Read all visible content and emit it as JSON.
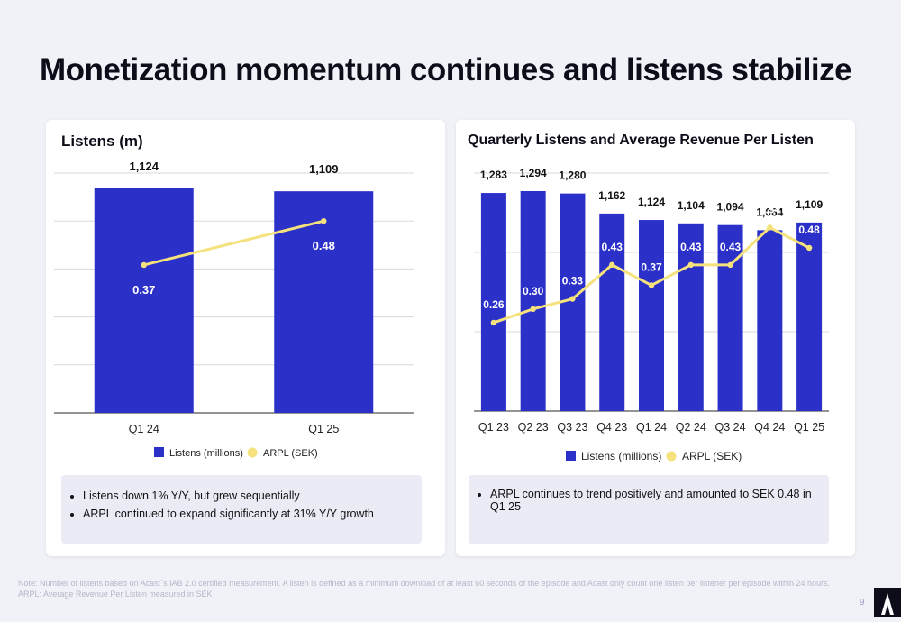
{
  "page": {
    "title": "Monetization momentum continues and listens stabilize",
    "page_number": "9",
    "footnote_lines": [
      "Note: Number of listens based on Acast´s IAB 2.0 certified measurement. A listen is defined as a minimum download of at least 60 seconds of the episode and Acast only count one listen per listener per episode within 24 hours.",
      "ARPL: Average Revenue Per Listen measured in SEK"
    ]
  },
  "colors": {
    "bar": "#2b30c8",
    "line": "#f5e27c",
    "grid": "#d9d9d9",
    "axis": "#555555"
  },
  "left_panel": {
    "title": "Listens (m)",
    "notes": [
      "Listens down 1% Y/Y, but grew sequentially",
      "ARPL continued to expand significantly at 31% Y/Y growth"
    ]
  },
  "right_panel": {
    "title": "Quarterly Listens and Average Revenue Per Listen",
    "notes": [
      "ARPL continues to trend positively and amounted to SEK 0.48 in Q1 25"
    ]
  },
  "chart_data": [
    {
      "type": "bar",
      "title": "Listens (m)",
      "categories": [
        "Q1 24",
        "Q1 25"
      ],
      "series": [
        {
          "name": "Listens (millions)",
          "type": "bar",
          "values": [
            1124,
            1109
          ],
          "labels": [
            "1,124",
            "1,109"
          ]
        },
        {
          "name": "ARPL (SEK)",
          "type": "line",
          "values": [
            0.37,
            0.48
          ],
          "labels": [
            "0.37",
            "0.48"
          ]
        }
      ],
      "legend": "bottom",
      "grid": true
    },
    {
      "type": "bar",
      "title": "Quarterly Listens and Average Revenue Per Listen",
      "categories": [
        "Q1 23",
        "Q2 23",
        "Q3 23",
        "Q4 23",
        "Q1 24",
        "Q2 24",
        "Q3 24",
        "Q4 24",
        "Q1 25"
      ],
      "series": [
        {
          "name": "Listens (millions)",
          "type": "bar",
          "values": [
            1283,
            1294,
            1280,
            1162,
            1124,
            1104,
            1094,
            1064,
            1109
          ],
          "labels": [
            "1,283",
            "1,294",
            "1,280",
            "1,162",
            "1,124",
            "1,104",
            "1,094",
            "1,064",
            "1,109"
          ]
        },
        {
          "name": "ARPL (SEK)",
          "type": "line",
          "values": [
            0.26,
            0.3,
            0.33,
            0.43,
            0.37,
            0.43,
            0.43,
            0.54,
            0.48
          ],
          "labels": [
            "0.26",
            "0.30",
            "0.33",
            "0.43",
            "0.37",
            "0.43",
            "0.43",
            "0.54",
            "0.48"
          ]
        }
      ],
      "legend": "bottom",
      "grid": true
    }
  ]
}
